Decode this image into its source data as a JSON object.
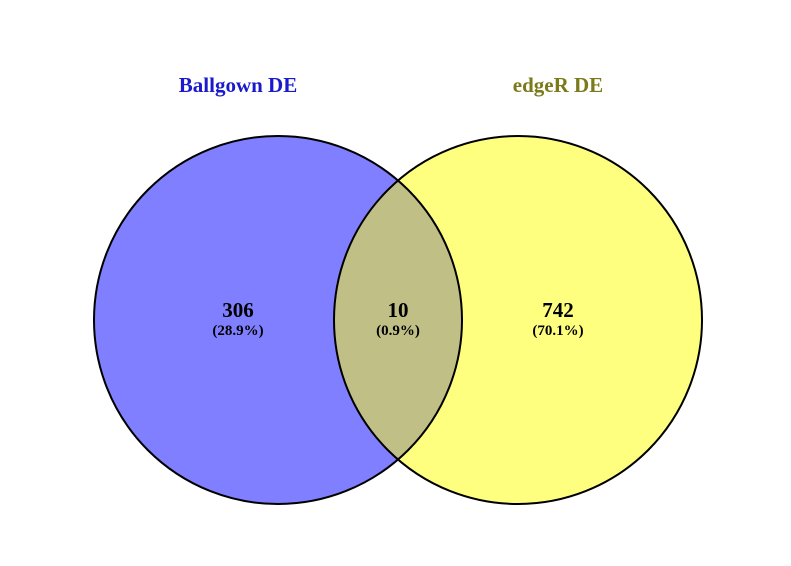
{
  "venn": {
    "sets": [
      {
        "label": "Ballgown DE",
        "color": "#7F7FFF",
        "label_color": "#1A1ACC"
      },
      {
        "label": "edgeR DE",
        "color": "#FFFF7F",
        "label_color": "#7A7A1A"
      }
    ],
    "overlap_color": "#BFBF86",
    "outline_color": "#000000",
    "regions": {
      "left_only": {
        "count": "306",
        "percent": "(28.9%)"
      },
      "intersection": {
        "count": "10",
        "percent": "(0.9%)"
      },
      "right_only": {
        "count": "742",
        "percent": "(70.1%)"
      }
    }
  }
}
